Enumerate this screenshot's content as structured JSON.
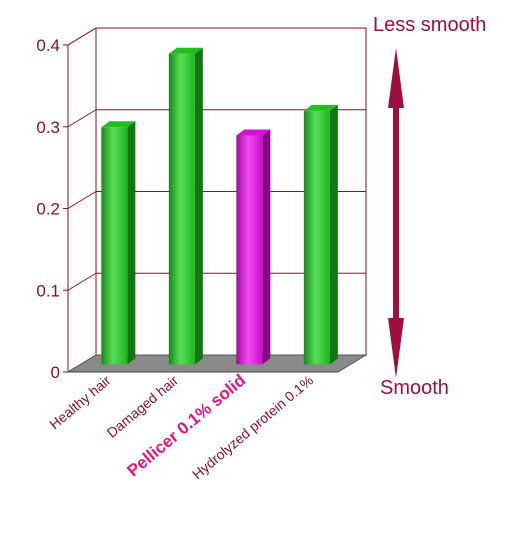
{
  "chart_data": {
    "type": "bar",
    "categories": [
      "Healthy hair",
      "Damaged hair",
      "Pellicer 0.1% solid",
      "Hydrolyzed protein 0.1%"
    ],
    "values": [
      0.29,
      0.38,
      0.28,
      0.31
    ],
    "bar_colors": [
      "#22d422",
      "#22d422",
      "#ee12ee",
      "#22d422"
    ],
    "highlight_category_color": "#e8157a",
    "ylim": [
      0,
      0.4
    ],
    "yticks": [
      0,
      0.1,
      0.2,
      0.3,
      0.4
    ],
    "ytick_labels": [
      "0",
      "0.1",
      "0.2",
      "0.3",
      "0.4"
    ],
    "grid": true,
    "annotations": {
      "top": "Less smooth",
      "bottom": "Smooth"
    },
    "arrow_color": "#9c0f3f",
    "axis_color": "#8b0f2c"
  }
}
